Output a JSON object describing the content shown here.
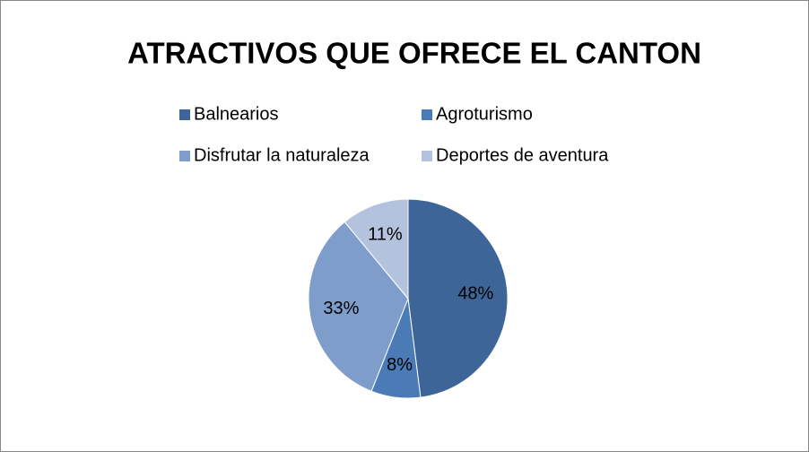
{
  "chart_data": {
    "type": "pie",
    "title": "ATRACTIVOS  QUE OFRECE EL CANTON",
    "categories": [
      "Balnearios",
      "Agroturismo",
      "Disfrutar la naturaleza",
      "Deportes de aventura"
    ],
    "values": [
      48,
      8,
      33,
      11
    ],
    "value_labels": [
      "48%",
      "8%",
      "33%",
      "11%"
    ],
    "colors": [
      "#3d6597",
      "#4a7bb7",
      "#7e9dca",
      "#b3c3de"
    ],
    "legend": "top"
  }
}
